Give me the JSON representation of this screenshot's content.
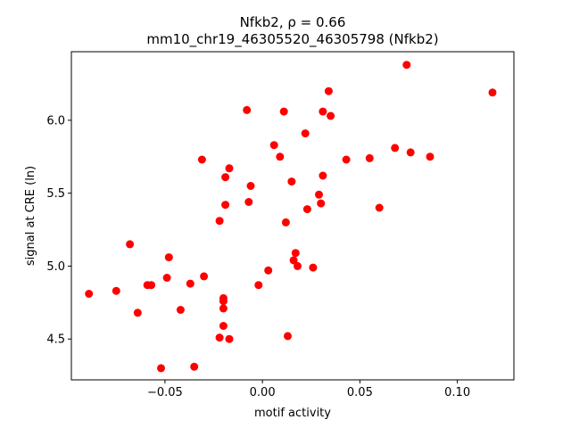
{
  "chart_data": {
    "type": "scatter",
    "title_line1": "Nfkb2, ρ = 0.66",
    "title_line2": "mm10_chr19_46305520_46305798 (Nfkb2)",
    "xlabel": "motif activity",
    "ylabel": "signal at CRE (ln)",
    "xlim": [
      -0.098,
      0.129
    ],
    "ylim": [
      4.22,
      6.47
    ],
    "xticks": [
      -0.05,
      0.0,
      0.05,
      0.1
    ],
    "xtick_labels": [
      "−0.05",
      "0.00",
      "0.05",
      "0.10"
    ],
    "yticks": [
      4.5,
      5.0,
      5.5,
      6.0
    ],
    "ytick_labels": [
      "4.5",
      "5.0",
      "5.5",
      "6.0"
    ],
    "grid": false,
    "legend": "none",
    "color": "#ff0000",
    "points": [
      [
        -0.089,
        4.81
      ],
      [
        -0.075,
        4.83
      ],
      [
        -0.068,
        5.15
      ],
      [
        -0.064,
        4.68
      ],
      [
        -0.059,
        4.87
      ],
      [
        -0.057,
        4.87
      ],
      [
        -0.052,
        4.3
      ],
      [
        -0.049,
        4.92
      ],
      [
        -0.048,
        5.06
      ],
      [
        -0.042,
        4.7
      ],
      [
        -0.037,
        4.88
      ],
      [
        -0.035,
        4.31
      ],
      [
        -0.031,
        5.73
      ],
      [
        -0.03,
        4.93
      ],
      [
        -0.022,
        5.31
      ],
      [
        -0.022,
        4.51
      ],
      [
        -0.02,
        4.76
      ],
      [
        -0.02,
        4.71
      ],
      [
        -0.02,
        4.59
      ],
      [
        -0.02,
        4.78
      ],
      [
        -0.019,
        5.42
      ],
      [
        -0.019,
        5.61
      ],
      [
        -0.017,
        5.67
      ],
      [
        -0.017,
        4.5
      ],
      [
        -0.008,
        6.07
      ],
      [
        -0.007,
        5.44
      ],
      [
        -0.006,
        5.55
      ],
      [
        -0.002,
        4.87
      ],
      [
        0.003,
        4.97
      ],
      [
        0.006,
        5.83
      ],
      [
        0.009,
        5.75
      ],
      [
        0.011,
        6.06
      ],
      [
        0.012,
        5.3
      ],
      [
        0.013,
        4.52
      ],
      [
        0.015,
        5.58
      ],
      [
        0.016,
        5.04
      ],
      [
        0.017,
        5.09
      ],
      [
        0.018,
        5.0
      ],
      [
        0.022,
        5.91
      ],
      [
        0.023,
        5.39
      ],
      [
        0.026,
        4.99
      ],
      [
        0.029,
        5.49
      ],
      [
        0.03,
        5.43
      ],
      [
        0.031,
        5.62
      ],
      [
        0.031,
        6.06
      ],
      [
        0.034,
        6.2
      ],
      [
        0.035,
        6.03
      ],
      [
        0.043,
        5.73
      ],
      [
        0.055,
        5.74
      ],
      [
        0.06,
        5.4
      ],
      [
        0.068,
        5.81
      ],
      [
        0.074,
        6.38
      ],
      [
        0.076,
        5.78
      ],
      [
        0.086,
        5.75
      ],
      [
        0.118,
        6.19
      ]
    ]
  }
}
